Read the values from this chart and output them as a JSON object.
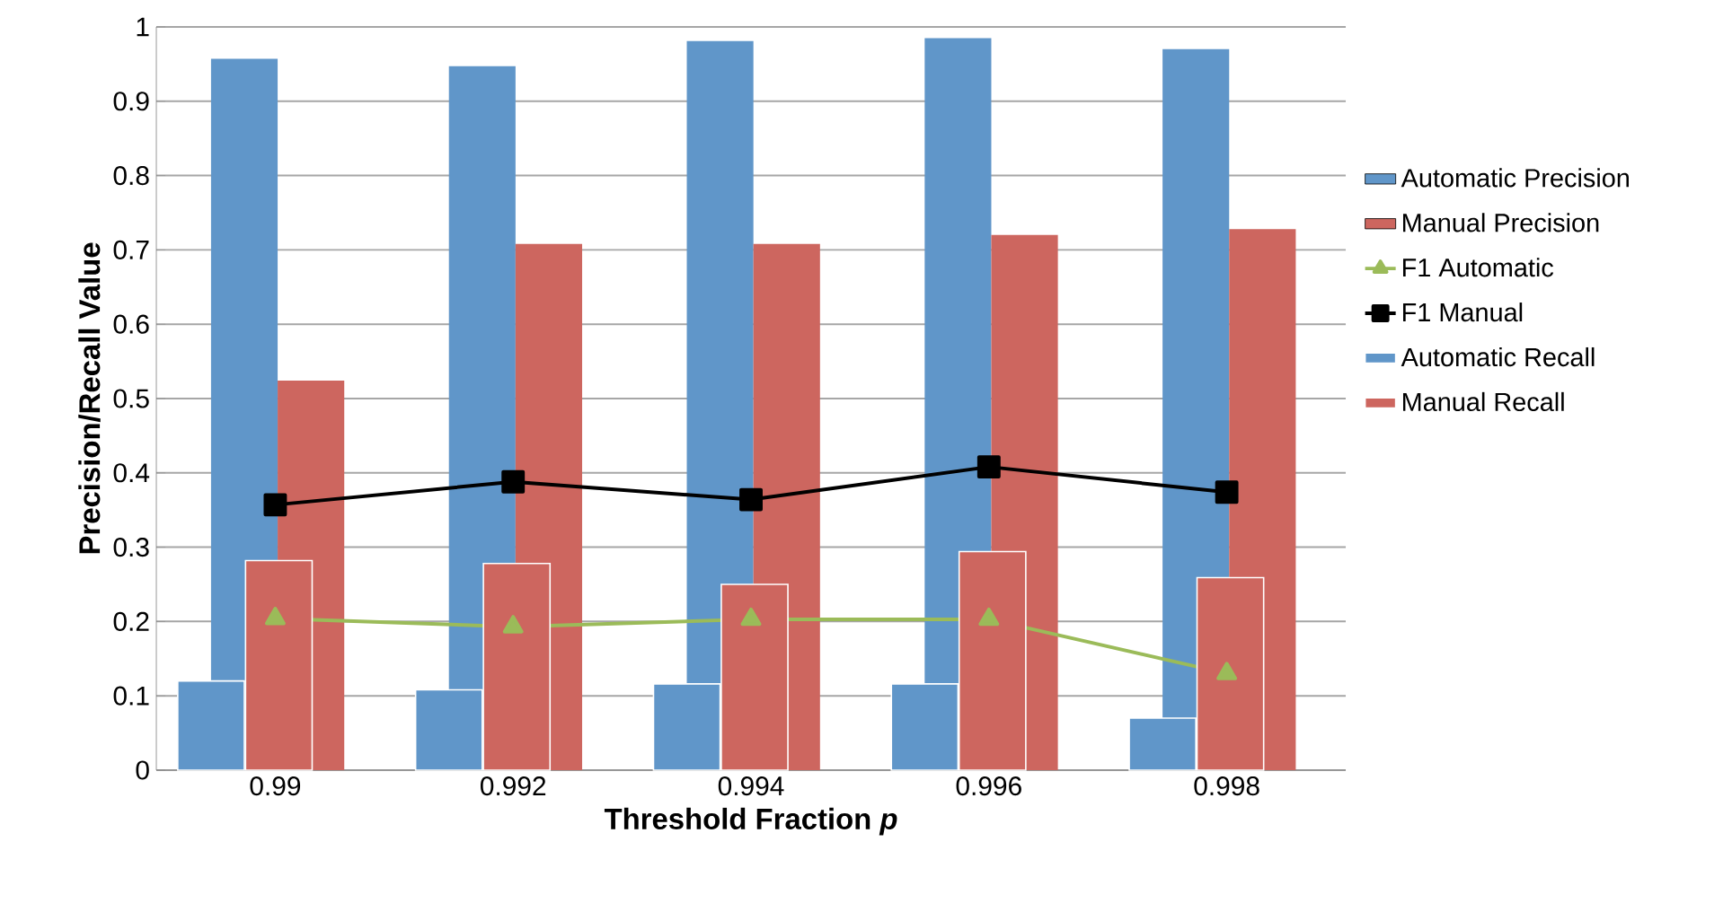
{
  "chart_data": {
    "type": "bar",
    "xlabel": "Threshold Fraction *p*",
    "ylabel": "Precision/Recall Value",
    "categories": [
      "0.99",
      "0.992",
      "0.994",
      "0.996",
      "0.998"
    ],
    "ylim": [
      0,
      1
    ],
    "yticks": [
      0,
      0.1,
      0.2,
      0.3,
      0.4,
      0.5,
      0.6,
      0.7,
      0.8,
      0.9,
      1
    ],
    "grid": "y",
    "legend": "right",
    "series": [
      {
        "name": "Automatic Precision",
        "color": "#6096c9",
        "values": [
          0.957,
          0.947,
          0.981,
          0.985,
          0.97
        ]
      },
      {
        "name": "Manual Precision",
        "color": "#cd665f",
        "values": [
          0.524,
          0.708,
          0.708,
          0.72,
          0.728
        ]
      },
      {
        "name": "F1 Automatic",
        "type": "line",
        "color": "#9bbb59",
        "marker": "triangle",
        "values": [
          0.204,
          0.193,
          0.203,
          0.203,
          0.13
        ]
      },
      {
        "name": "F1 Manual",
        "type": "line",
        "color": "#000000",
        "marker": "square",
        "values": [
          0.357,
          0.388,
          0.364,
          0.408,
          0.374
        ]
      },
      {
        "name": "Automatic Recall",
        "color": "#6096c9",
        "values": [
          0.12,
          0.108,
          0.116,
          0.116,
          0.07
        ]
      },
      {
        "name": "Manual Recall",
        "color": "#cd665f",
        "values": [
          0.282,
          0.278,
          0.25,
          0.294,
          0.259
        ]
      }
    ]
  }
}
